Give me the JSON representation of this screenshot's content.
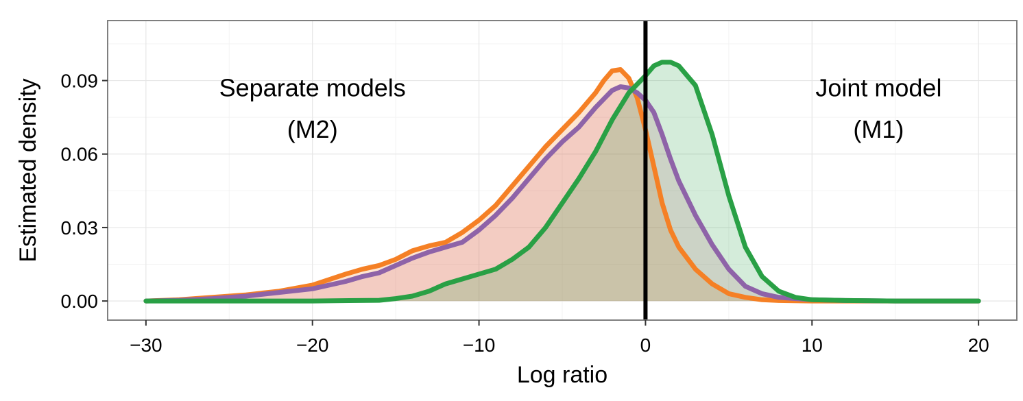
{
  "chart_data": {
    "type": "area",
    "xlabel": "Log ratio",
    "ylabel": "Estimated density",
    "xlim": [
      -32.3,
      22.3
    ],
    "ylim": [
      -0.0078,
      0.1145
    ],
    "x_ticks": [
      -30,
      -20,
      -10,
      0,
      10,
      20
    ],
    "x_tick_labels": [
      "−30",
      "−20",
      "−10",
      "0",
      "10",
      "20"
    ],
    "y_ticks": [
      0.0,
      0.03,
      0.06,
      0.09
    ],
    "y_tick_labels": [
      "0.00",
      "0.03",
      "0.06",
      "0.09"
    ],
    "grid": true,
    "legend": "none",
    "vline": {
      "x": 0,
      "color": "#000000"
    },
    "annotations": [
      {
        "lines": [
          "Separate models",
          "(M2)"
        ],
        "x": -20,
        "y": [
          0.087,
          0.07
        ]
      },
      {
        "lines": [
          "Joint model",
          "(M1)"
        ],
        "x": 14,
        "y": [
          0.087,
          0.07
        ]
      }
    ],
    "series": [
      {
        "color": "#f58025",
        "fill": "#f58025",
        "x": [
          -30,
          -28,
          -26,
          -24,
          -22,
          -20,
          -18,
          -17,
          -16,
          -15,
          -14,
          -13,
          -12,
          -11,
          -10,
          -9,
          -8,
          -7,
          -6,
          -5,
          -4,
          -3,
          -2.5,
          -2,
          -1.5,
          -1,
          -0.5,
          0,
          0.5,
          1,
          1.5,
          2,
          3,
          4,
          5,
          6,
          7,
          8,
          10,
          12,
          15,
          20
        ],
        "y": [
          0.0,
          0.0005,
          0.0015,
          0.0025,
          0.004,
          0.0065,
          0.011,
          0.013,
          0.0145,
          0.017,
          0.0205,
          0.0225,
          0.024,
          0.028,
          0.033,
          0.039,
          0.047,
          0.055,
          0.063,
          0.07,
          0.077,
          0.085,
          0.09,
          0.094,
          0.0945,
          0.091,
          0.083,
          0.07,
          0.055,
          0.04,
          0.029,
          0.022,
          0.013,
          0.007,
          0.003,
          0.0015,
          0.0005,
          0.0002,
          0.0,
          0.0,
          0.0,
          0.0
        ]
      },
      {
        "color": "#8e63a8",
        "fill": "#cc6680",
        "x": [
          -30,
          -28,
          -26,
          -24,
          -22,
          -20,
          -18,
          -17,
          -16,
          -15,
          -14,
          -13,
          -12,
          -11,
          -10,
          -9,
          -8,
          -7,
          -6,
          -5,
          -4,
          -3,
          -2,
          -1.5,
          -1,
          -0.5,
          0,
          0.5,
          1,
          1.5,
          2,
          3,
          4,
          5,
          6,
          7,
          8,
          10,
          12,
          15,
          20
        ],
        "y": [
          0.0,
          0.0003,
          0.001,
          0.002,
          0.0035,
          0.005,
          0.008,
          0.01,
          0.0115,
          0.0145,
          0.0175,
          0.02,
          0.022,
          0.024,
          0.029,
          0.035,
          0.042,
          0.05,
          0.058,
          0.065,
          0.071,
          0.079,
          0.086,
          0.0875,
          0.087,
          0.085,
          0.082,
          0.077,
          0.068,
          0.058,
          0.049,
          0.035,
          0.023,
          0.013,
          0.006,
          0.003,
          0.0015,
          0.0005,
          0.0002,
          0.0,
          0.0
        ]
      },
      {
        "color": "#29a045",
        "fill": "#29a045",
        "x": [
          -30,
          -20,
          -16,
          -15,
          -14,
          -13,
          -12,
          -11,
          -10,
          -9,
          -8,
          -7,
          -6,
          -5,
          -4,
          -3,
          -2,
          -1,
          0,
          0.5,
          1,
          1.5,
          2,
          3,
          4,
          5,
          6,
          7,
          8,
          9,
          10,
          12,
          15,
          20
        ],
        "y": [
          0.0,
          0.0,
          0.0003,
          0.001,
          0.002,
          0.004,
          0.007,
          0.009,
          0.011,
          0.013,
          0.017,
          0.022,
          0.03,
          0.04,
          0.05,
          0.061,
          0.074,
          0.085,
          0.092,
          0.096,
          0.0975,
          0.0975,
          0.096,
          0.088,
          0.068,
          0.043,
          0.022,
          0.01,
          0.004,
          0.0015,
          0.0005,
          0.0002,
          0.0,
          0.0
        ]
      }
    ]
  }
}
